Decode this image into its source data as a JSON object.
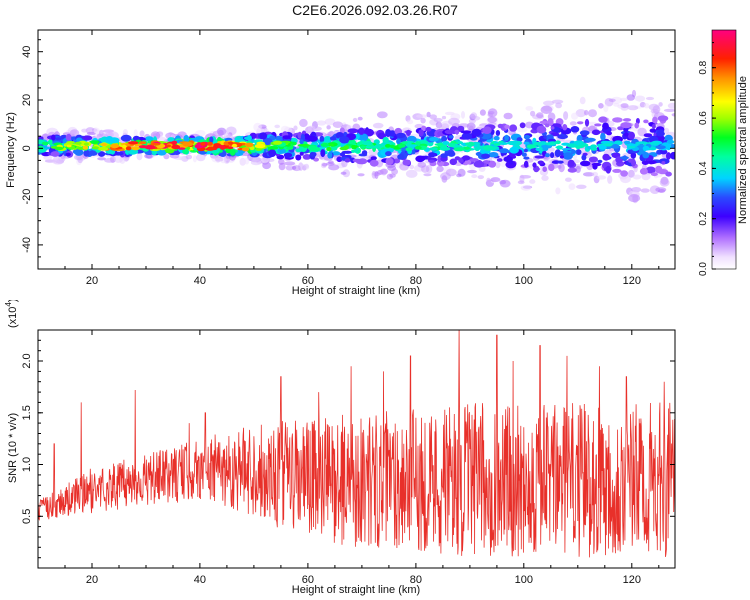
{
  "title": "C2E6.2026.092.03.26.R07",
  "chart_data": [
    {
      "type": "heatmap",
      "xlabel": "Height of straight line (km)",
      "ylabel": "Frequency (Hz)",
      "xlim": [
        10,
        128
      ],
      "ylim": [
        -50,
        49
      ],
      "xticks": [
        20,
        40,
        60,
        80,
        100,
        120
      ],
      "yticks": [
        -40,
        -20,
        0,
        20,
        40
      ],
      "colorbar": {
        "label": "Normalized spectral amplitude",
        "range": [
          0.0,
          0.95
        ],
        "ticks": [
          0.0,
          0.2,
          0.4,
          0.6,
          0.8
        ],
        "tick_labels": [
          "0.0",
          "0.2",
          "0.4",
          "0.6",
          "0.8"
        ]
      },
      "band": {
        "center_hz": 1,
        "width_hz": [
          [
            10,
            6
          ],
          [
            20,
            6
          ],
          [
            30,
            5
          ],
          [
            40,
            5
          ],
          [
            50,
            7
          ],
          [
            60,
            9
          ],
          [
            70,
            12
          ],
          [
            80,
            12
          ],
          [
            90,
            13
          ],
          [
            100,
            16
          ],
          [
            110,
            18
          ],
          [
            120,
            20
          ],
          [
            128,
            20
          ]
        ],
        "peak_amplitude": [
          [
            10,
            0.6
          ],
          [
            20,
            0.75
          ],
          [
            30,
            0.95
          ],
          [
            40,
            0.95
          ],
          [
            46,
            0.9
          ],
          [
            55,
            0.6
          ],
          [
            70,
            0.55
          ],
          [
            80,
            0.5
          ],
          [
            100,
            0.45
          ],
          [
            128,
            0.4
          ]
        ]
      }
    },
    {
      "type": "line",
      "series_name": "SNR",
      "xlabel": "Height of straight line (km)",
      "ylabel": "SNR (10 * v/v)",
      "multiplier_label": "(x10",
      "multiplier_exp": "4",
      "xlim": [
        10,
        128
      ],
      "ylim": [
        0,
        2.3
      ],
      "xticks": [
        20,
        40,
        60,
        80,
        100,
        120
      ],
      "yticks": [
        0.5,
        1.0,
        1.5,
        2.0
      ],
      "color": "#e8302a",
      "envelope_mean": [
        [
          10,
          0.55
        ],
        [
          20,
          0.75
        ],
        [
          30,
          0.85
        ],
        [
          40,
          0.95
        ],
        [
          50,
          0.95
        ],
        [
          60,
          0.85
        ],
        [
          70,
          0.85
        ],
        [
          80,
          0.85
        ],
        [
          90,
          0.85
        ],
        [
          100,
          0.85
        ],
        [
          110,
          0.85
        ],
        [
          128,
          0.85
        ]
      ],
      "envelope_amplitude": [
        [
          10,
          0.1
        ],
        [
          20,
          0.22
        ],
        [
          30,
          0.25
        ],
        [
          40,
          0.3
        ],
        [
          50,
          0.45
        ],
        [
          60,
          0.6
        ],
        [
          70,
          0.65
        ],
        [
          80,
          0.7
        ],
        [
          90,
          0.75
        ],
        [
          100,
          0.75
        ],
        [
          110,
          0.75
        ],
        [
          128,
          0.75
        ]
      ],
      "spikes": [
        [
          13,
          1.2
        ],
        [
          18,
          1.6
        ],
        [
          28,
          1.72
        ],
        [
          38,
          1.4
        ],
        [
          41,
          1.5
        ],
        [
          55,
          1.85
        ],
        [
          62,
          1.7
        ],
        [
          68,
          1.95
        ],
        [
          74,
          1.9
        ],
        [
          79,
          2.05
        ],
        [
          88,
          2.33
        ],
        [
          95,
          2.25
        ],
        [
          98,
          2.0
        ],
        [
          103,
          2.15
        ],
        [
          108,
          2.05
        ],
        [
          114,
          1.95
        ],
        [
          119,
          1.85
        ],
        [
          126,
          1.8
        ]
      ]
    }
  ]
}
